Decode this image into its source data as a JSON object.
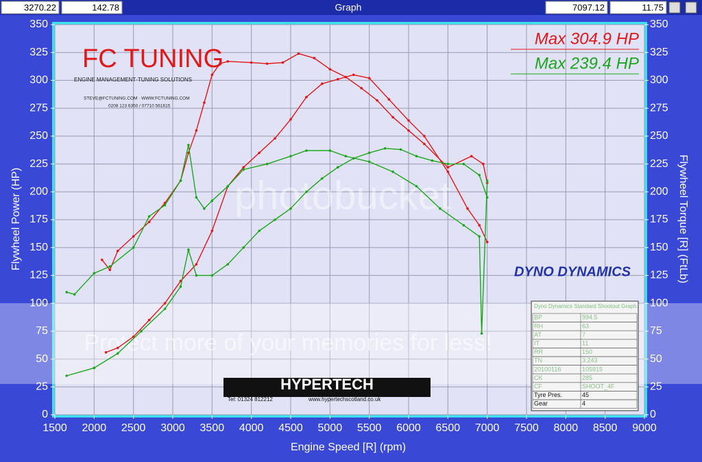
{
  "toolbar": {
    "fields_left": [
      "3270.22",
      "142.78"
    ],
    "title": "Graph",
    "fields_right": [
      "7097.12",
      "11.75"
    ]
  },
  "chart_data": {
    "type": "line",
    "x_label": "Engine Speed [R] (rpm)",
    "y_label": "Flywheel Power (HP)",
    "y2_label": "Flywheel Torque [R] (FtLb)",
    "xlim": [
      1500,
      9000
    ],
    "xticks": [
      1500,
      2000,
      2500,
      3000,
      3500,
      4000,
      4500,
      5000,
      5500,
      6000,
      6500,
      7000,
      7500,
      8000,
      8500,
      9000
    ],
    "ylim": [
      0,
      350
    ],
    "yticks": [
      0,
      25,
      50,
      75,
      100,
      125,
      150,
      175,
      200,
      225,
      250,
      275,
      300,
      325,
      350
    ],
    "y2lim": [
      0,
      350
    ],
    "y2ticks": [
      0,
      25,
      50,
      75,
      100,
      125,
      150,
      175,
      200,
      225,
      250,
      275,
      300,
      325,
      350
    ],
    "grid": true,
    "annotations": [
      "Max 304.9 HP",
      "Max 239.4 HP"
    ],
    "series": [
      {
        "name": "Red Power",
        "color": "#e01818",
        "x": [
          2150,
          2300,
          2500,
          2700,
          2900,
          3100,
          3300,
          3500,
          3700,
          3900,
          4100,
          4300,
          4500,
          4700,
          4900,
          5100,
          5300,
          5500,
          5750,
          6000,
          6200,
          6500,
          6750,
          6900,
          7000
        ],
        "values": [
          56,
          60,
          70,
          85,
          100,
          120,
          135,
          165,
          205,
          222,
          235,
          248,
          265,
          285,
          297,
          301,
          305,
          302,
          283,
          264,
          250,
          218,
          185,
          170,
          155
        ]
      },
      {
        "name": "Red Torque",
        "color": "#e01818",
        "axis": "y2",
        "x": [
          2100,
          2200,
          2300,
          2500,
          2700,
          2900,
          3100,
          3200,
          3300,
          3400,
          3500,
          3600,
          3700,
          4000,
          4200,
          4400,
          4600,
          4800,
          5000,
          5200,
          5400,
          5600,
          5800,
          6000,
          6200,
          6500,
          6800,
          6950,
          7000
        ],
        "values": [
          139,
          130,
          147,
          160,
          173,
          190,
          210,
          235,
          255,
          280,
          305,
          315,
          317,
          316,
          315,
          316,
          324,
          320,
          310,
          303,
          293,
          282,
          267,
          255,
          243,
          222,
          232,
          225,
          208
        ]
      },
      {
        "name": "Green Power",
        "color": "#1aa81a",
        "x": [
          1650,
          2000,
          2300,
          2600,
          2900,
          3100,
          3200,
          3300,
          3500,
          3700,
          3900,
          4100,
          4300,
          4500,
          4700,
          4900,
          5100,
          5300,
          5500,
          5700,
          5900,
          6100,
          6300,
          6500,
          6700,
          6900,
          7000
        ],
        "values": [
          35,
          42,
          55,
          75,
          95,
          115,
          148,
          125,
          125,
          135,
          150,
          165,
          175,
          185,
          200,
          212,
          222,
          230,
          235,
          239,
          238,
          232,
          228,
          225,
          225,
          215,
          195
        ]
      },
      {
        "name": "Green Torque",
        "color": "#1aa81a",
        "axis": "y2",
        "x": [
          1650,
          1750,
          2000,
          2200,
          2500,
          2700,
          2900,
          3100,
          3200,
          3300,
          3400,
          3500,
          3700,
          3900,
          4200,
          4500,
          4700,
          5000,
          5200,
          5500,
          5800,
          6100,
          6400,
          6700,
          6900,
          6930,
          7000
        ],
        "values": [
          110,
          108,
          127,
          133,
          150,
          178,
          188,
          210,
          242,
          195,
          185,
          192,
          205,
          220,
          225,
          232,
          237,
          237,
          232,
          227,
          218,
          205,
          185,
          170,
          160,
          73,
          210
        ]
      }
    ]
  },
  "logos": {
    "fc": "FC TUNING",
    "fc_sub": "ENGINE MANAGEMENT·TUNING SOLUTIONS",
    "fc_contact": "STEVE@FCTUNING.COM · WWW.FCTUNING.COM",
    "fc_phone": "0208 123 6350 / 07710 561615",
    "dyno": "DYNO DYNAMICS",
    "hyper": "HYPERTECH",
    "hyper_tel": "Tel: 01324 812212",
    "hyper_web": "www.hypertechscotland.co.uk"
  },
  "watermark": {
    "brand": "photobucket",
    "slogan": "Protect more of your memories for less!"
  },
  "stats_table": {
    "title": "Dyno Dynamics Standard Shootout Graph.",
    "rows": [
      [
        "BP",
        "994.5"
      ],
      [
        "RH",
        "63"
      ],
      [
        "AT",
        "7"
      ],
      [
        "IT",
        "11"
      ],
      [
        "RR",
        "150"
      ],
      [
        "TN",
        "3.243"
      ],
      [
        "20100116",
        "105915"
      ],
      [
        "CK",
        "285"
      ],
      [
        "CF",
        "SHOOT_4F"
      ],
      [
        "Tyre Pres.",
        "45"
      ],
      [
        "Gear",
        "4"
      ]
    ]
  }
}
